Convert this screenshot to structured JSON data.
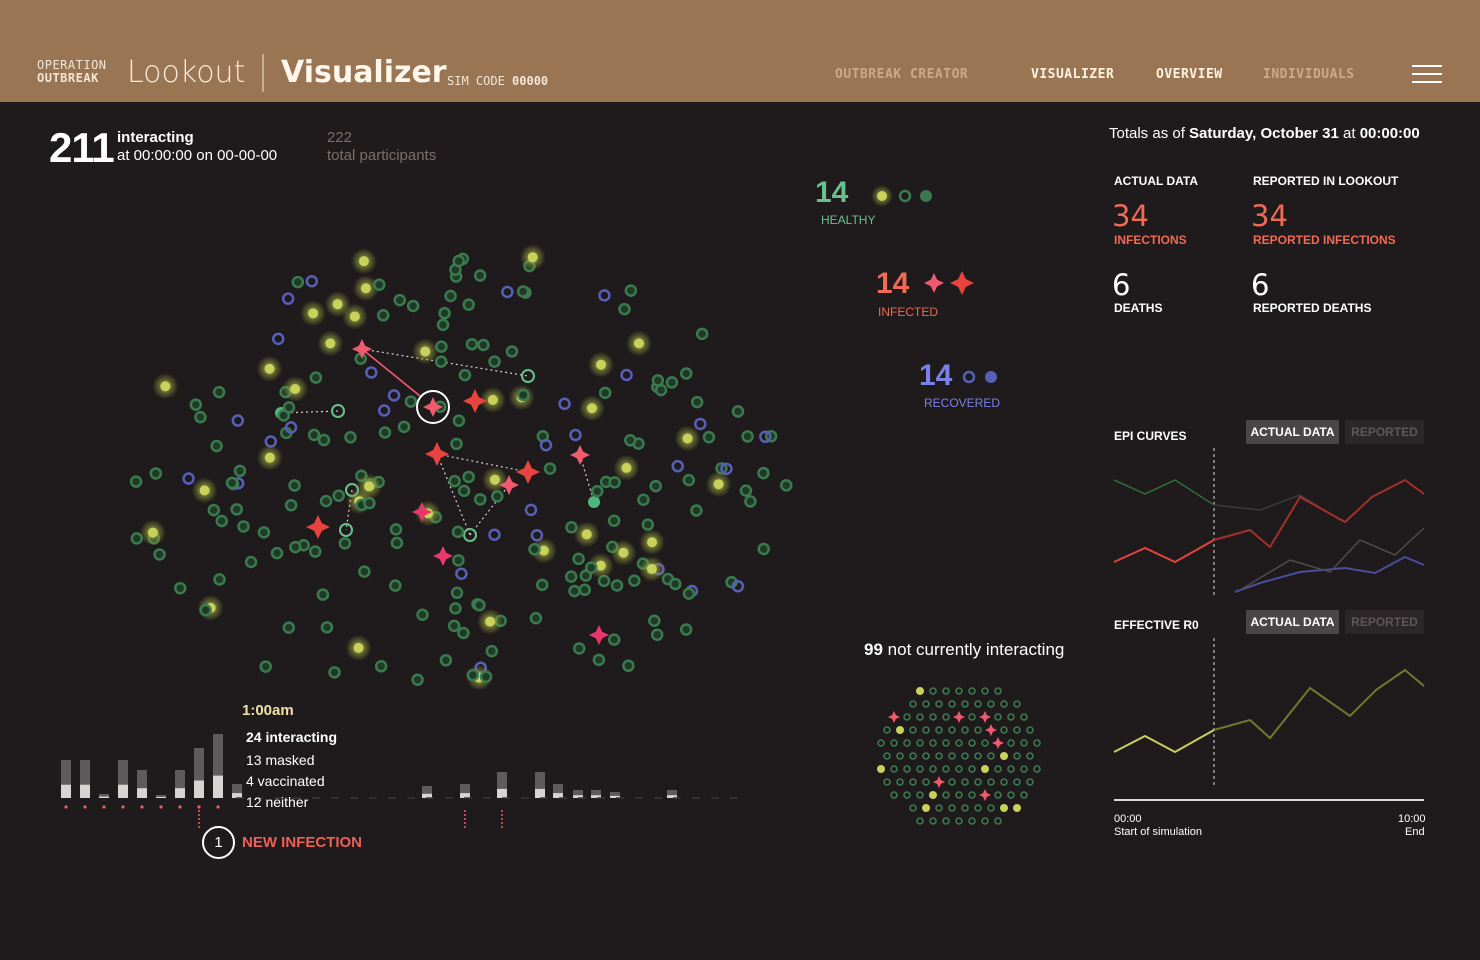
{
  "header": {
    "brand_line1": "OPERATION",
    "brand_line2": "OUTBREAK",
    "brand_name": "Lookout",
    "page_title": "Visualizer",
    "sim_code_label": "SIM CODE",
    "sim_code_value": "00000",
    "nav": [
      "OUTBREAK CREATOR",
      "VISUALIZER",
      "OVERVIEW",
      "INDIVIDUALS"
    ],
    "active_nav": "VISUALIZER",
    "menu_icon": "hamburger-icon"
  },
  "summary": {
    "interacting_count": "211",
    "interacting_label": "interacting",
    "time_text": "at 00:00:00 on 00-00-00",
    "total_participants": "222",
    "total_participants_label": "total participants"
  },
  "legend": {
    "healthy": {
      "count": "14",
      "label": "HEALTHY",
      "color": "#69c08e"
    },
    "infected": {
      "count": "14",
      "label": "INFECTED",
      "color": "#f06a55"
    },
    "recovered": {
      "count": "14",
      "label": "RECOVERED",
      "color": "#7a82e8"
    }
  },
  "totals": {
    "prefix": "Totals as of",
    "date": "Saturday, October 31",
    "at": "at",
    "time": "00:00:00",
    "actual_header": "ACTUAL DATA",
    "reported_header": "REPORTED IN LOOKOUT",
    "actual_infections": "34",
    "actual_infections_label": "INFECTIONS",
    "reported_infections": "34",
    "reported_infections_label": "REPORTED INFECTIONS",
    "actual_deaths": "6",
    "actual_deaths_label": "DEATHS",
    "reported_deaths": "6",
    "reported_deaths_label": "REPORTED DEATHS"
  },
  "epi_curves": {
    "title": "EPI CURVES",
    "toggle_actual": "ACTUAL DATA",
    "toggle_reported": "REPORTED",
    "active": "ACTUAL DATA"
  },
  "effective_r0": {
    "title": "EFFECTIVE R0",
    "toggle_actual": "ACTUAL DATA",
    "toggle_reported": "REPORTED",
    "active": "ACTUAL DATA",
    "x_start": "00:00",
    "x_start_label": "Start of simulation",
    "x_end": "10:00",
    "x_end_label": "End"
  },
  "timeline_tooltip": {
    "time": "1:00am",
    "interacting": "24 interacting",
    "masked": "13 masked",
    "vaccinated": "4 vaccinated",
    "neither": "12 neither"
  },
  "new_infection": {
    "count": "1",
    "label": "NEW INFECTION"
  },
  "not_interacting": {
    "count": "99",
    "label": "not currently interacting"
  },
  "colors": {
    "header_bg": "#9a7554",
    "page_bg": "#1f1b1c",
    "healthy": "#3a7a4e",
    "exposed": "#c8d25a",
    "infected": "#f05a6e",
    "infected_severe": "#e8433f",
    "recovered": "#5660b8"
  }
}
